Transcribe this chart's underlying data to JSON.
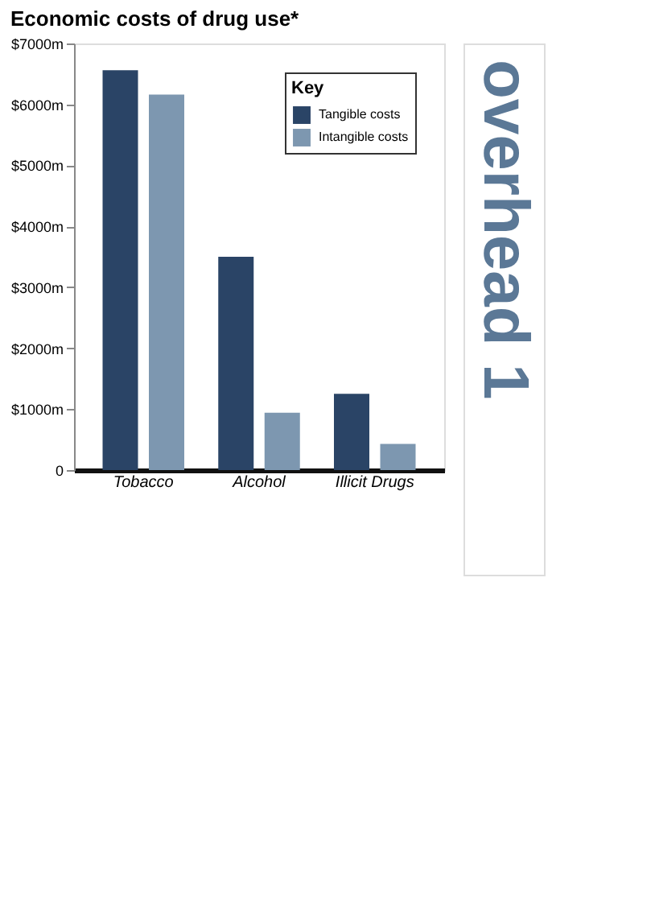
{
  "chart_data": {
    "type": "bar",
    "title": "Economic costs of drug use*",
    "categories": [
      "Tobacco",
      "Alcohol",
      "Illicit Drugs"
    ],
    "series": [
      {
        "name": "Tangible costs",
        "color": "#2a4466",
        "values": [
          6560,
          3500,
          1250
        ]
      },
      {
        "name": "Intangible costs",
        "color": "#7d97b0",
        "values": [
          6160,
          940,
          430
        ]
      }
    ],
    "legend_title": "Key",
    "legend": "top right",
    "ylim": [
      0,
      7000
    ],
    "yticks": [
      {
        "value": 0,
        "label": "0"
      },
      {
        "value": 1000,
        "label": "$1000m"
      },
      {
        "value": 2000,
        "label": "$2000m"
      },
      {
        "value": 3000,
        "label": "$3000m"
      },
      {
        "value": 4000,
        "label": "$4000m"
      },
      {
        "value": 5000,
        "label": "$5000m"
      },
      {
        "value": 6000,
        "label": "$6000m"
      },
      {
        "value": 7000,
        "label": "$7000m"
      }
    ],
    "grid": false,
    "annotations": [
      "overhead 1"
    ]
  }
}
